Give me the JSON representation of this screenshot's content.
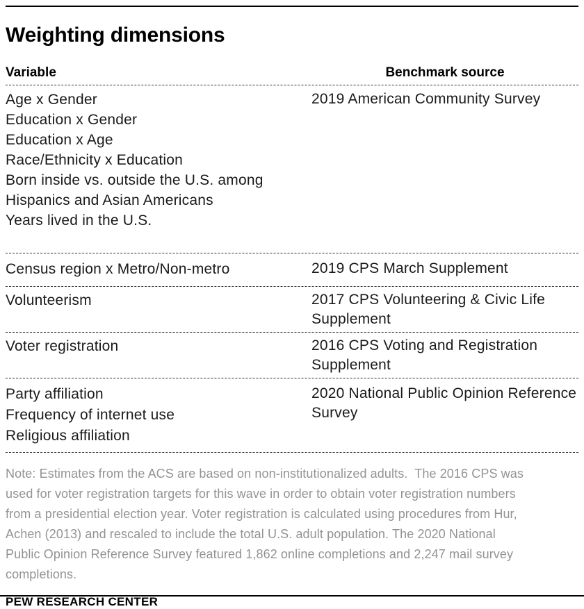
{
  "title": "Weighting dimensions",
  "table": {
    "columns": [
      "Variable",
      "Benchmark source"
    ],
    "sections": [
      {
        "variables": [
          "Age x Gender",
          "Education x Gender",
          "Education x Age",
          "Race/Ethnicity x Education",
          "Born inside vs. outside the U.S. among Hispanics and Asian Americans",
          "Years lived in the U.S."
        ],
        "benchmark": "2019 American Community Survey"
      },
      {
        "variables": [
          "Census region x Metro/Non-metro"
        ],
        "benchmark": "2019 CPS March Supplement"
      },
      {
        "variables": [
          "Volunteerism"
        ],
        "benchmark": "2017 CPS Volunteering & Civic Life Supplement"
      },
      {
        "variables": [
          "Voter registration"
        ],
        "benchmark": "2016 CPS Voting and Registration Supplement"
      },
      {
        "variables": [
          "Party affiliation",
          "Frequency of internet use",
          "Religious affiliation"
        ],
        "benchmark": "2020 National Public Opinion Reference Survey"
      }
    ]
  },
  "note_lines": [
    "Note: Estimates from the ACS are based on non-institutionalized adults.  The 2016 CPS was",
    "used for voter registration targets for this wave in order to obtain voter registration numbers",
    "from a presidential election year. Voter registration is calculated using procedures from Hur,",
    "Achen (2013) and rescaled to include the total U.S. adult population. The 2020 National",
    "Public Opinion Reference Survey featured 1,862 online completions and 2,247 mail survey",
    "completions."
  ],
  "source_label": "PEW RESEARCH CENTER",
  "colors": {
    "text": "#1a1a1a",
    "note_gray": "#939395",
    "rule_black": "#000000",
    "dash": "#2b2b2b"
  }
}
